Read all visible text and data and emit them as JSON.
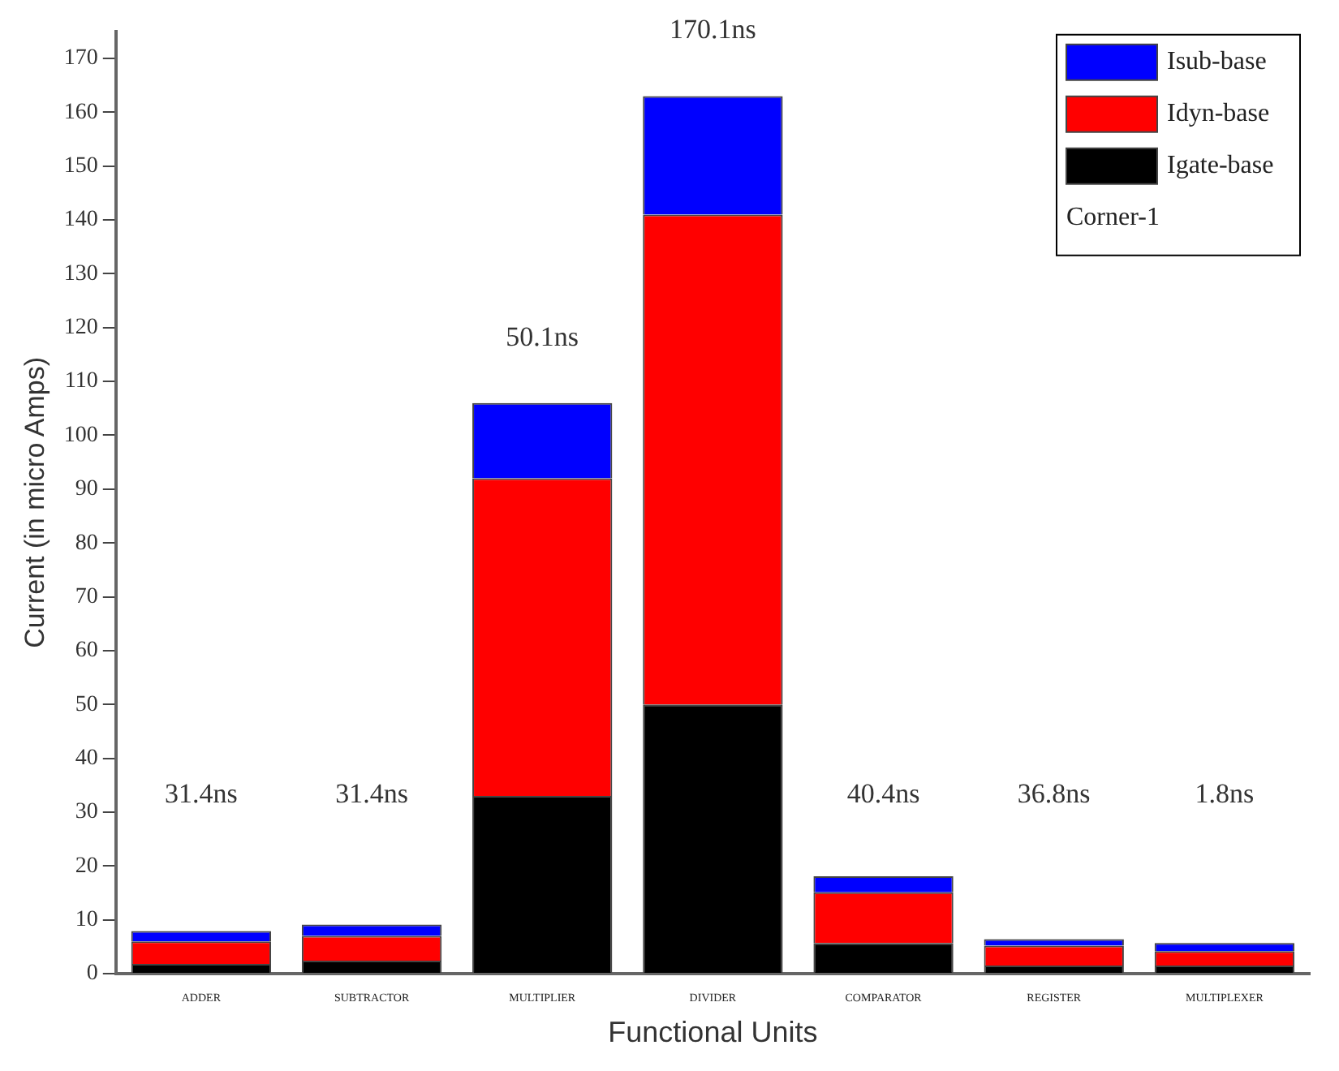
{
  "chart_data": {
    "type": "bar",
    "stacked": true,
    "xlabel": "Functional Units",
    "ylabel": "Current (in micro Amps)",
    "categories": [
      "ADDER",
      "SUBTRACTOR",
      "MULTIPLIER",
      "DIVIDER",
      "COMPARATOR",
      "REGISTER",
      "MULTIPLEXER"
    ],
    "series": [
      {
        "name": "Igate-base",
        "color": "#000000",
        "values": [
          1.8,
          2.4,
          33,
          50,
          5.7,
          1.5,
          1.5
        ]
      },
      {
        "name": "Idyn-base",
        "color": "#ff0000",
        "values": [
          4.2,
          4.6,
          59,
          91,
          9.4,
          3.7,
          2.7
        ]
      },
      {
        "name": "Isub-base",
        "color": "#0000ff",
        "values": [
          1.9,
          2.1,
          14,
          22,
          3,
          1.2,
          1.5
        ]
      }
    ],
    "ylim": [
      0,
      175
    ],
    "yticks": [
      0,
      10,
      20,
      30,
      40,
      50,
      60,
      70,
      80,
      90,
      100,
      110,
      120,
      130,
      140,
      150,
      160,
      170
    ],
    "grid": false,
    "legend": "top right",
    "legend_title": "Corner-1",
    "annotations": [
      "31.4ns",
      "31.4ns",
      "50.1ns",
      "170.1ns",
      "40.4ns",
      "36.8ns",
      "1.8ns"
    ]
  }
}
